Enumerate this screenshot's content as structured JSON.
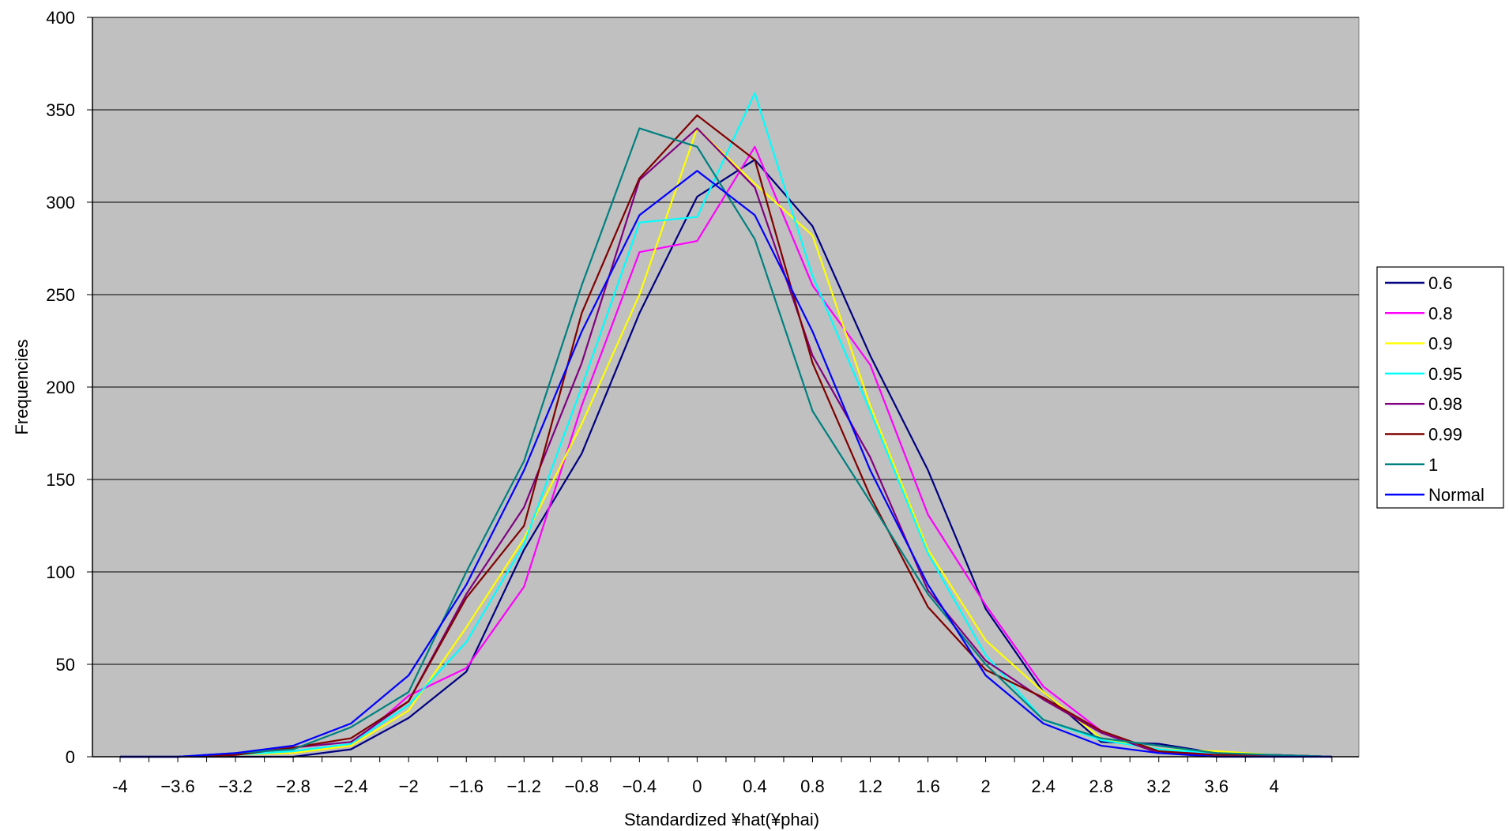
{
  "chart_data": {
    "type": "line",
    "title": "",
    "xlabel": "Standardized ¥hat(¥phai)",
    "ylabel": "Frequencies",
    "xlim": [
      -4.2,
      4.4
    ],
    "ylim": [
      0,
      400
    ],
    "x_ticks": [
      -4,
      -3.6,
      -3.2,
      -2.8,
      -2.4,
      -2,
      -1.6,
      -1.2,
      -0.8,
      -0.4,
      0,
      0.4,
      0.8,
      1.2,
      1.6,
      2,
      2.4,
      2.8,
      3.2,
      3.6,
      4
    ],
    "x_tick_labels": [
      "-4",
      "−3.6",
      "−3.2",
      "−2.8",
      "−2.4",
      "−2",
      "−1.6",
      "−1.2",
      "−0.8",
      "−0.4",
      "0",
      "0.4",
      "0.8",
      "1.2",
      "1.6",
      "2",
      "2.4",
      "2.8",
      "3.2",
      "3.6",
      "4"
    ],
    "y_ticks": [
      0,
      50,
      100,
      150,
      200,
      250,
      300,
      350,
      400
    ],
    "grid": "horizontal",
    "plot_background": "#c0c0c0",
    "legend_position": "right",
    "x": [
      -4,
      -3.6,
      -3.2,
      -2.8,
      -2.4,
      -2,
      -1.6,
      -1.2,
      -0.8,
      -0.4,
      0,
      0.4,
      0.8,
      1.2,
      1.6,
      2,
      2.4,
      2.8,
      3.2,
      3.6,
      4,
      4.4
    ],
    "series": [
      {
        "name": "0.6",
        "color": "#000080",
        "values": [
          0,
          0,
          0,
          0,
          4,
          21,
          46,
          112,
          164,
          240,
          303,
          323,
          287,
          217,
          155,
          80,
          35,
          8,
          7,
          2,
          1,
          0
        ]
      },
      {
        "name": "0.8",
        "color": "#ff00ff",
        "values": [
          0,
          0,
          1,
          2,
          6,
          33,
          48,
          92,
          190,
          273,
          279,
          330,
          255,
          212,
          131,
          82,
          38,
          14,
          2,
          2,
          1,
          0
        ]
      },
      {
        "name": "0.9",
        "color": "#ffff00",
        "values": [
          0,
          0,
          1,
          2,
          6,
          25,
          70,
          118,
          180,
          250,
          340,
          310,
          282,
          190,
          112,
          63,
          35,
          10,
          4,
          3,
          1,
          0
        ]
      },
      {
        "name": "0.95",
        "color": "#00ffff",
        "values": [
          0,
          0,
          1,
          3,
          7,
          28,
          62,
          115,
          200,
          289,
          292,
          359,
          260,
          187,
          110,
          55,
          20,
          9,
          4,
          2,
          1,
          0
        ]
      },
      {
        "name": "0.98",
        "color": "#800080",
        "values": [
          0,
          0,
          1,
          5,
          8,
          30,
          88,
          135,
          213,
          312,
          340,
          308,
          217,
          162,
          90,
          52,
          31,
          13,
          2,
          1,
          1,
          0
        ]
      },
      {
        "name": "0.99",
        "color": "#800000",
        "values": [
          0,
          0,
          1,
          5,
          10,
          30,
          86,
          125,
          240,
          313,
          347,
          323,
          213,
          141,
          81,
          47,
          32,
          14,
          3,
          1,
          1,
          0
        ]
      },
      {
        "name": "1",
        "color": "#008080",
        "values": [
          0,
          0,
          2,
          4,
          16,
          35,
          100,
          160,
          255,
          340,
          330,
          280,
          187,
          138,
          88,
          50,
          20,
          10,
          6,
          2,
          1,
          0
        ]
      },
      {
        "name": "Normal",
        "color": "#0000ff",
        "values": [
          0,
          0,
          2,
          6,
          18,
          44,
          93,
          155,
          230,
          293,
          317,
          293,
          230,
          155,
          93,
          44,
          18,
          6,
          2,
          0,
          0,
          0
        ]
      }
    ]
  }
}
